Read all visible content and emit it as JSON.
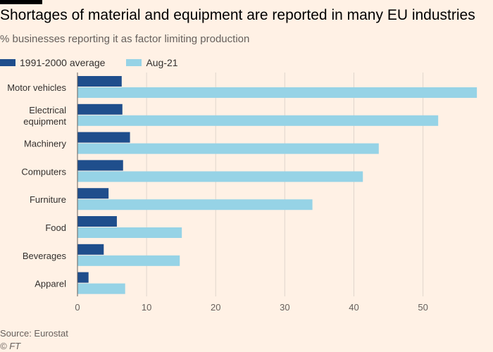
{
  "header": {
    "title": "Shortages of material and equipment are reported in many EU industries",
    "subtitle": "% businesses reporting it as factor limiting production"
  },
  "legend": [
    {
      "label": "1991-2000 average",
      "color": "#1f4e8c"
    },
    {
      "label": "Aug-21",
      "color": "#96d3e6"
    }
  ],
  "footer": {
    "source": "Source: Eurostat",
    "copyright": "© FT"
  },
  "chart_data": {
    "type": "bar",
    "orientation": "horizontal",
    "categories": [
      "Motor vehicles",
      "Electrical equipment",
      "Machinery",
      "Computers",
      "Furniture",
      "Food",
      "Beverages",
      "Apparel"
    ],
    "category_lines": [
      [
        "Motor vehicles"
      ],
      [
        "Electrical",
        "equipment"
      ],
      [
        "Machinery"
      ],
      [
        "Computers"
      ],
      [
        "Furniture"
      ],
      [
        "Food"
      ],
      [
        "Beverages"
      ],
      [
        "Apparel"
      ]
    ],
    "series": [
      {
        "name": "1991-2000 average",
        "color": "#1f4e8c",
        "values": [
          6.4,
          6.5,
          7.6,
          6.6,
          4.5,
          5.7,
          3.8,
          1.6
        ]
      },
      {
        "name": "Aug-21",
        "color": "#96d3e6",
        "values": [
          57.8,
          52.2,
          43.6,
          41.3,
          34.0,
          15.1,
          14.8,
          6.9
        ]
      }
    ],
    "xlim": [
      0,
      58.5
    ],
    "xticks": [
      0,
      10,
      20,
      30,
      40,
      50
    ],
    "grid": true,
    "legend_position": "top-left"
  }
}
